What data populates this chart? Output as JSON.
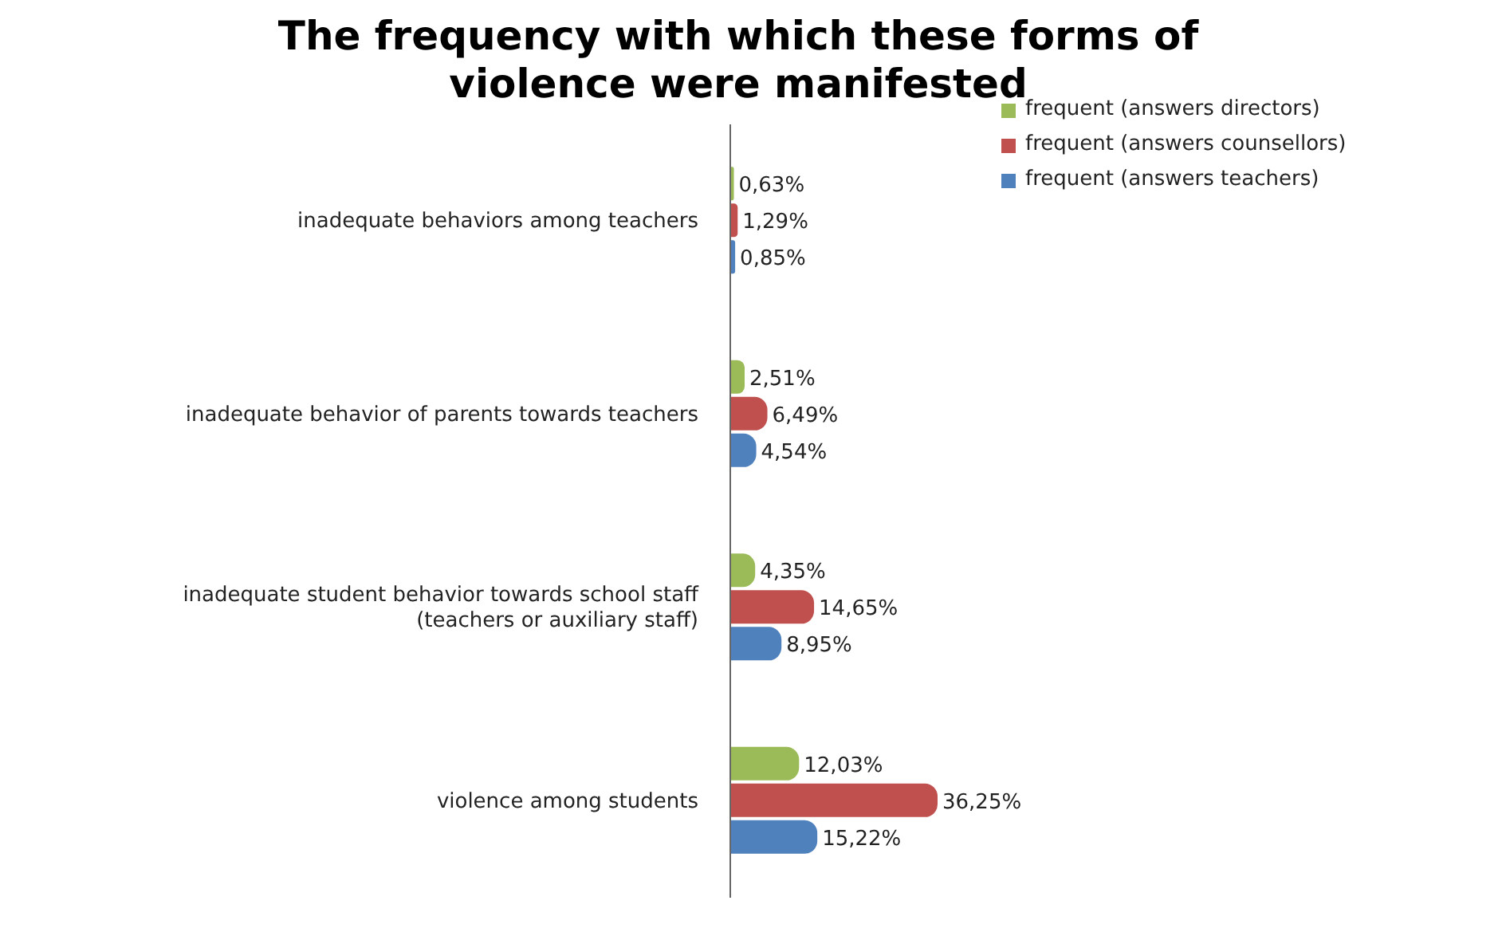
{
  "chart_data": {
    "type": "bar",
    "orientation": "horizontal",
    "title": "The frequency with which these forms of violence were manifested",
    "categories": [
      "inadequate behaviors among teachers",
      "inadequate behavior of parents towards teachers",
      "inadequate student behavior towards school staff (teachers or auxiliary staff)",
      "violence among students"
    ],
    "series": [
      {
        "name": "frequent  (answers directors)",
        "color": "#9bbb59",
        "values": [
          0.63,
          2.51,
          4.35,
          12.03
        ],
        "value_labels": [
          "0,63%",
          "2,51%",
          "4,35%",
          "12,03%"
        ]
      },
      {
        "name": "frequent  (answers  counsellors)",
        "color": "#c0504d",
        "values": [
          1.29,
          6.49,
          14.65,
          36.25
        ],
        "value_labels": [
          "1,29%",
          "6,49%",
          "14,65%",
          "36,25%"
        ]
      },
      {
        "name": "frequent (answers teachers)",
        "color": "#4f81bd",
        "values": [
          0.85,
          4.54,
          8.95,
          15.22
        ],
        "value_labels": [
          "0,85%",
          "4,54%",
          "8,95%",
          "15,22%"
        ]
      }
    ],
    "legend": "top right",
    "grid": false
  }
}
